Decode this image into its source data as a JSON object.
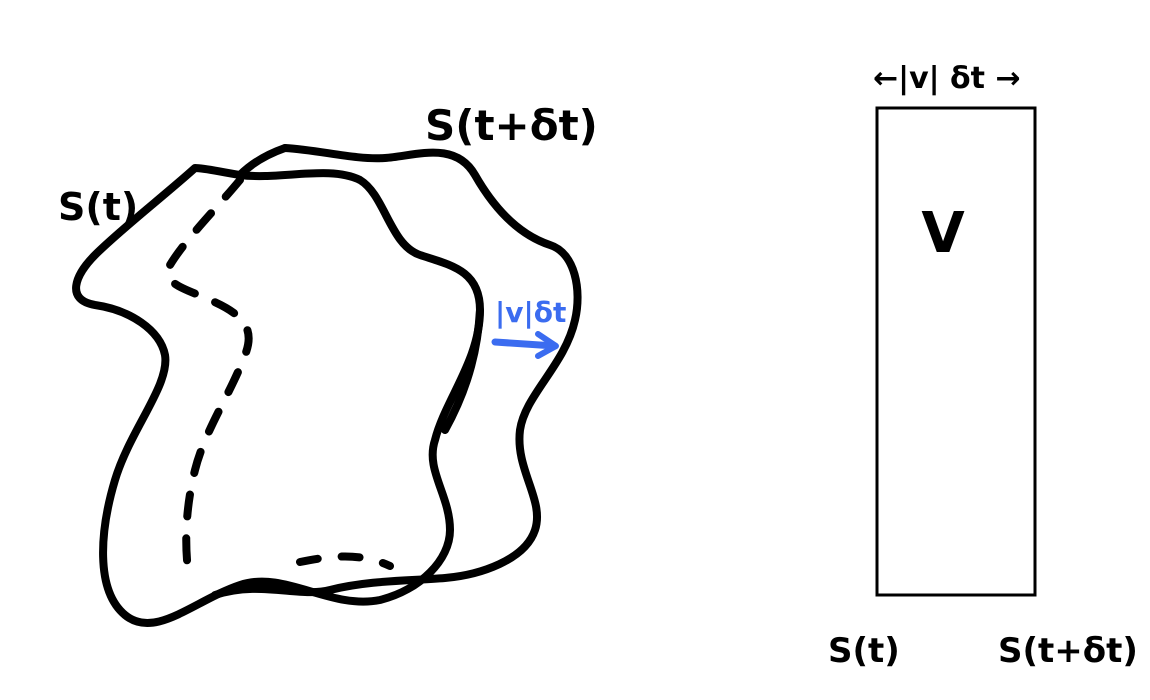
{
  "left_figure": {
    "label_s_t": "S(t)",
    "label_s_t_dt": "S(t+δt)",
    "displacement_label": "|v|δt",
    "displacement_color": "#3b6cf0"
  },
  "right_figure": {
    "top_label": "←|v| δt →",
    "volume_label": "V",
    "bottom_left_label": "S(t)",
    "bottom_right_label": "S(t+δt)"
  }
}
